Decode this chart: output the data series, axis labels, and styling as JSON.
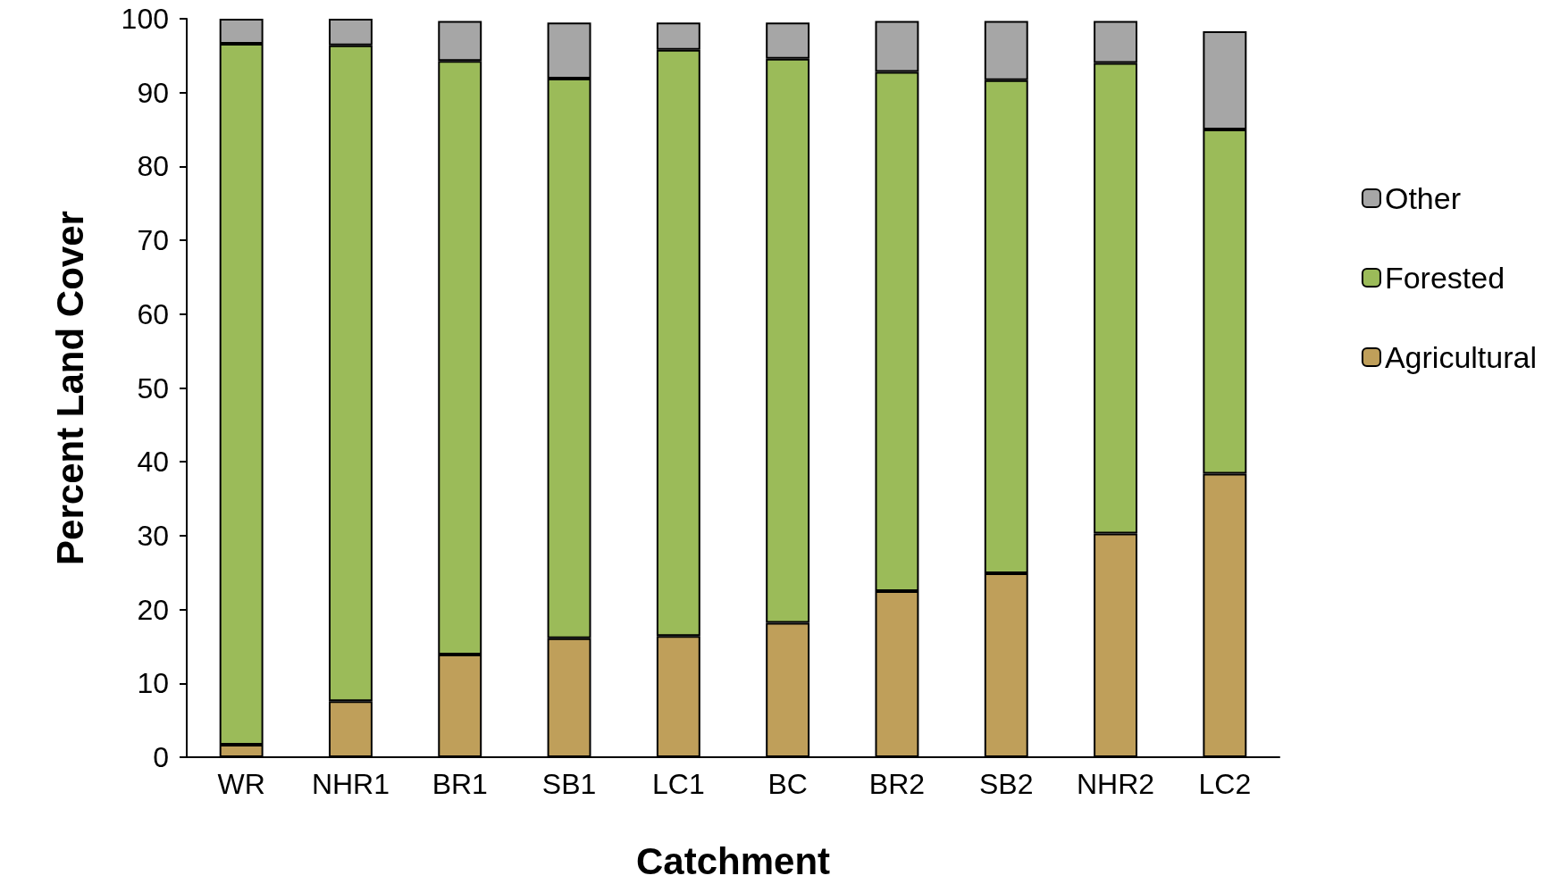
{
  "chart_data": {
    "type": "bar",
    "stacked": true,
    "xlabel": "Catchment",
    "ylabel": "Percent Land Cover",
    "categories": [
      "WR",
      "NHR1",
      "BR1",
      "SB1",
      "LC1",
      "BC",
      "BR2",
      "SB2",
      "NHR2",
      "LC2"
    ],
    "series": [
      {
        "name": "Agricultural",
        "color": "#bf9f5a",
        "values": [
          1.7,
          7.6,
          13.9,
          16.1,
          16.4,
          18.2,
          22.5,
          24.9,
          30.3,
          38.4
        ]
      },
      {
        "name": "Forested",
        "color": "#9bbb59",
        "values": [
          94.9,
          88.8,
          80.4,
          75.8,
          79.4,
          76.4,
          70.3,
          66.8,
          63.7,
          46.6
        ]
      },
      {
        "name": "Other",
        "color": "#a6a6a6",
        "values": [
          3.4,
          3.6,
          5.4,
          7.6,
          3.7,
          4.9,
          6.9,
          8.0,
          5.7,
          13.3
        ]
      }
    ],
    "ylim": [
      0,
      100
    ],
    "yticks": [
      0,
      10,
      20,
      30,
      40,
      50,
      60,
      70,
      80,
      90,
      100
    ],
    "grid": false,
    "legend": "right"
  }
}
